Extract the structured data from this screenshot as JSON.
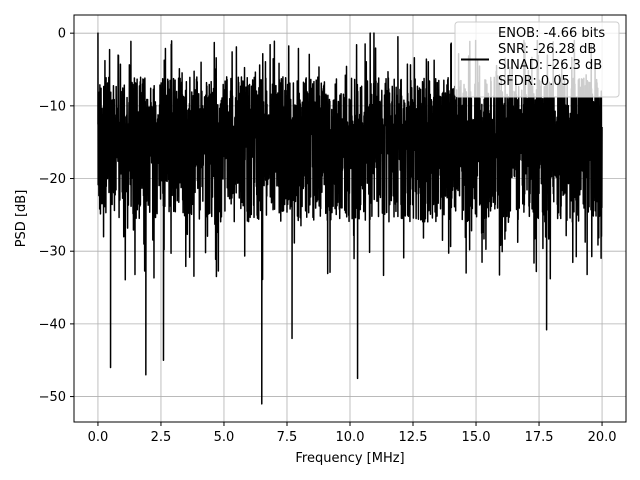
{
  "chart_data": {
    "type": "line",
    "xlabel": "Frequency [MHz]",
    "ylabel": "PSD [dB]",
    "xlim": [
      -0.95,
      20.95
    ],
    "ylim": [
      -53.5,
      2.5
    ],
    "x_ticks": [
      0.0,
      2.5,
      5.0,
      7.5,
      10.0,
      12.5,
      15.0,
      17.5,
      20.0
    ],
    "x_tick_labels": [
      "0.0",
      "2.5",
      "5.0",
      "7.5",
      "10.0",
      "12.5",
      "15.0",
      "17.5",
      "20.0"
    ],
    "y_ticks": [
      0,
      -10,
      -20,
      -30,
      -40,
      -50
    ],
    "y_tick_labels": [
      "0",
      "−10",
      "−20",
      "−30",
      "−40",
      "−50"
    ],
    "grid": true,
    "legend": {
      "placement": "top-right",
      "entries": [
        "ENOB: -4.66 bits",
        "SNR: -26.28 dB",
        "SINAD: -26.3 dB",
        "SFDR: 0.05"
      ]
    },
    "series": [
      {
        "color": "#000000",
        "x_start": 0.0,
        "x_end": 20.0,
        "typical_band": [
          -26,
          -4
        ],
        "peaks": [
          [
            0.0,
            0.0
          ],
          [
            10.8,
            0.0
          ],
          [
            10.95,
            0.0
          ],
          [
            11.9,
            -0.5
          ],
          [
            14.0,
            -1.5
          ],
          [
            16.9,
            -1.0
          ],
          [
            18.9,
            -1.0
          ]
        ],
        "dips": [
          [
            0.5,
            -46.0
          ],
          [
            1.9,
            -47.0
          ],
          [
            2.6,
            -45.0
          ],
          [
            6.5,
            -51.0
          ],
          [
            7.7,
            -42.0
          ],
          [
            10.3,
            -47.5
          ],
          [
            17.8,
            -40.8
          ]
        ]
      }
    ]
  }
}
